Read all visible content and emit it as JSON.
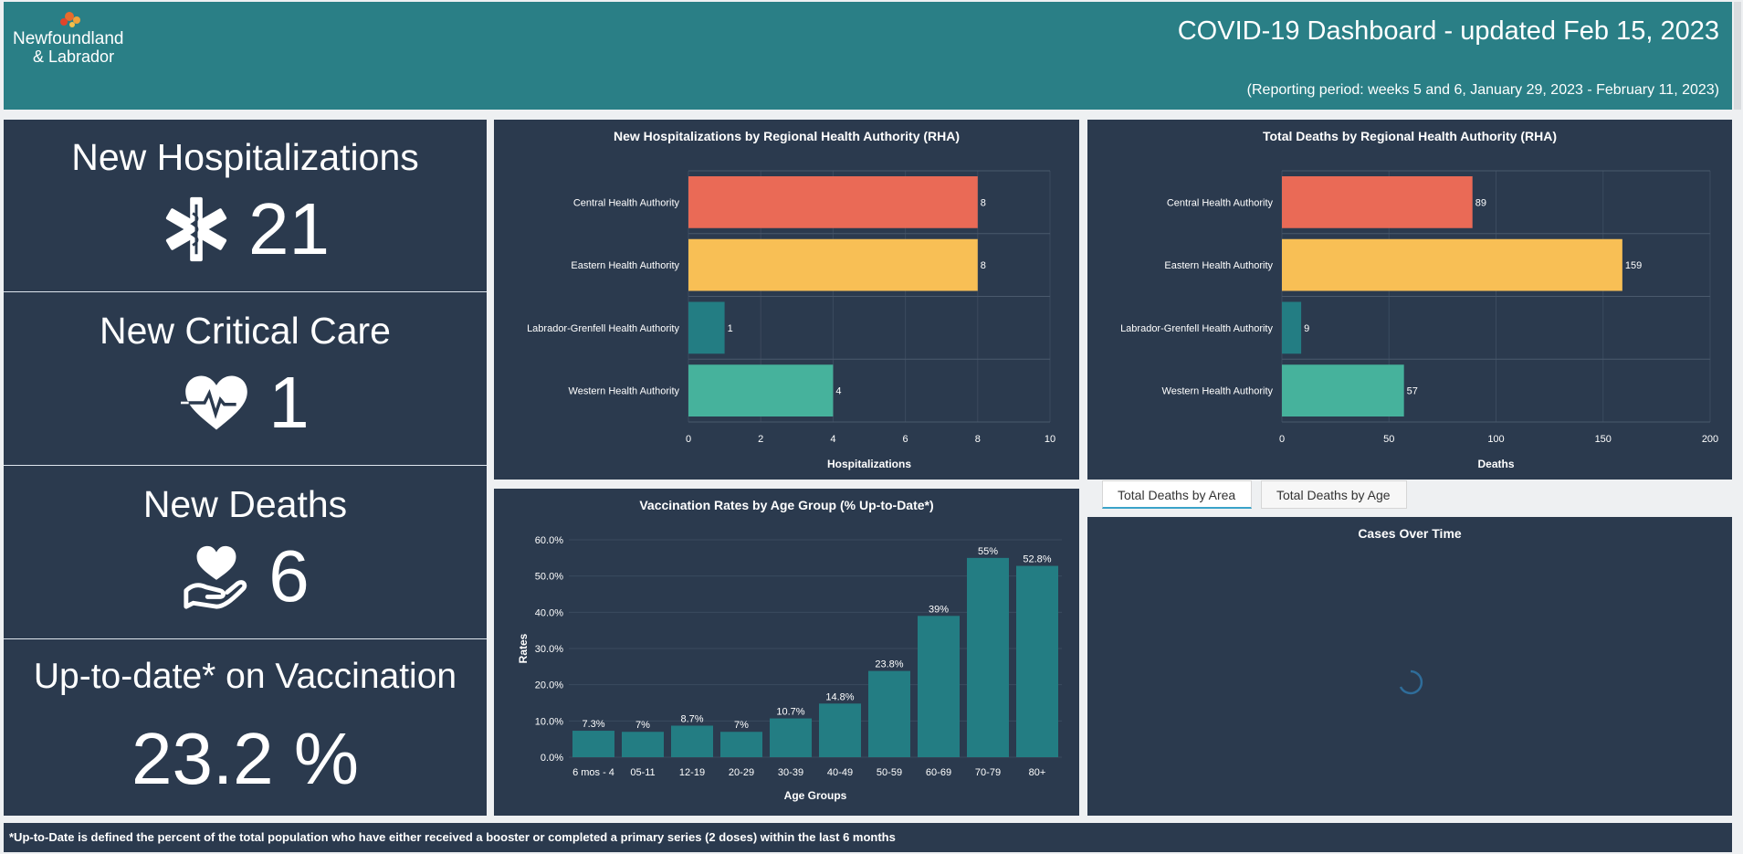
{
  "header": {
    "logo_text_line1": "Newfoundland",
    "logo_text_line2": "& Labrador",
    "title": "COVID-19 Dashboard - updated Feb 15, 2023",
    "subtitle": "(Reporting period: weeks 5 and 6, January 29, 2023 - February 11, 2023)"
  },
  "kpis": [
    {
      "title": "New Hospitalizations",
      "value": "21",
      "icon": "star-of-life-icon"
    },
    {
      "title": "New Critical Care",
      "value": "1",
      "icon": "heart-pulse-icon"
    },
    {
      "title": "New Deaths",
      "value": "6",
      "icon": "hand-holding-heart-icon"
    },
    {
      "title": "Up-to-date* on Vaccination",
      "value": "23.2 %",
      "icon": ""
    }
  ],
  "tabs": [
    {
      "label": "Total Deaths by Area",
      "active": true
    },
    {
      "label": "Total Deaths by Age",
      "active": false
    }
  ],
  "cases_panel": {
    "title": "Cases Over Time"
  },
  "footer": {
    "note": "*Up-to-Date  is defined the percent of the total population who have either received a booster or completed a primary series (2 doses) within the last 6 months"
  },
  "colors": {
    "header": "#2a7f86",
    "panel": "#2b3a4e",
    "red": "#ea6a56",
    "yellow": "#f8bf55",
    "teal": "#237d83",
    "green": "#46b29c"
  },
  "chart_data": [
    {
      "id": "hosp",
      "type": "bar",
      "orientation": "horizontal",
      "title": "New Hospitalizations by Regional Health Authority (RHA)",
      "categories": [
        "Central Health Authority",
        "Eastern Health Authority",
        "Labrador-Grenfell Health Authority",
        "Western Health Authority"
      ],
      "values": [
        8,
        8,
        1,
        4
      ],
      "bar_colors": [
        "#ea6a56",
        "#f8bf55",
        "#237d83",
        "#46b29c"
      ],
      "xlabel": "Hospitalizations",
      "ylabel": "",
      "xlim": [
        0,
        10
      ],
      "ticks": [
        0,
        2,
        4,
        6,
        8,
        10
      ],
      "grid": true
    },
    {
      "id": "deaths",
      "type": "bar",
      "orientation": "horizontal",
      "title": "Total Deaths by Regional Health Authority (RHA)",
      "categories": [
        "Central Health Authority",
        "Eastern Health Authority",
        "Labrador-Grenfell Health Authority",
        "Western Health Authority"
      ],
      "values": [
        89,
        159,
        9,
        57
      ],
      "bar_colors": [
        "#ea6a56",
        "#f8bf55",
        "#237d83",
        "#46b29c"
      ],
      "xlabel": "Deaths",
      "ylabel": "",
      "xlim": [
        0,
        200
      ],
      "ticks": [
        0,
        50,
        100,
        150,
        200
      ],
      "grid": true
    },
    {
      "id": "vacc",
      "type": "bar",
      "orientation": "vertical",
      "title": "Vaccination Rates by Age Group (% Up-to-Date*)",
      "categories": [
        "6 mos - 4",
        "05-11",
        "12-19",
        "20-29",
        "30-39",
        "40-49",
        "50-59",
        "60-69",
        "70-79",
        "80+"
      ],
      "values": [
        7.3,
        7,
        8.7,
        7,
        10.7,
        14.8,
        23.8,
        39,
        55,
        52.8
      ],
      "data_labels": [
        "7.3%",
        "7%",
        "8.7%",
        "7%",
        "10.7%",
        "14.8%",
        "23.8%",
        "39%",
        "55%",
        "52.8%"
      ],
      "bar_color": "#237d83",
      "xlabel": "Age Groups",
      "ylabel": "Rates",
      "ylim": [
        0,
        60
      ],
      "ticks": [
        0,
        10,
        20,
        30,
        40,
        50,
        60
      ],
      "tick_labels": [
        "0.0%",
        "10.0%",
        "20.0%",
        "30.0%",
        "40.0%",
        "50.0%",
        "60.0%"
      ],
      "grid": true
    }
  ]
}
